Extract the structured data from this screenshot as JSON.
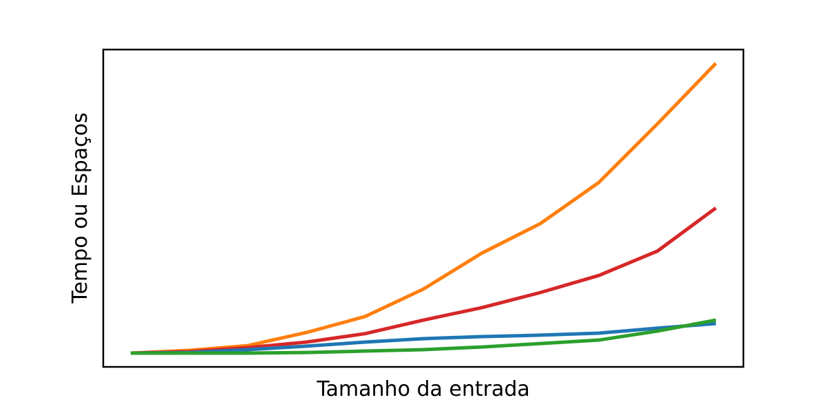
{
  "chart_data": {
    "type": "line",
    "x_label": "Tamanho da entrada",
    "y_label": "Tempo ou Espaços",
    "x": [
      0,
      10,
      20,
      30,
      40,
      50,
      60,
      70,
      80,
      90,
      100
    ],
    "series": [
      {
        "color": "#ff7f0e",
        "values": [
          0,
          0.0095,
          0.026,
          0.071,
          0.126,
          0.221,
          0.345,
          0.447,
          0.589,
          0.791,
          1.0
        ]
      },
      {
        "color": "#d62728",
        "values": [
          0,
          0.005,
          0.019,
          0.038,
          0.067,
          0.114,
          0.157,
          0.209,
          0.268,
          0.352,
          0.501
        ]
      },
      {
        "color": "#1f77b4",
        "values": [
          0,
          0.002,
          0.012,
          0.024,
          0.038,
          0.05,
          0.057,
          0.062,
          0.069,
          0.086,
          0.102
        ]
      },
      {
        "color": "#2ca02c",
        "values": [
          0,
          0,
          0,
          0.002,
          0.007,
          0.012,
          0.021,
          0.033,
          0.045,
          0.076,
          0.114
        ]
      }
    ],
    "xlim": [
      -4.7,
      104.7
    ],
    "ylim": [
      -0.0475,
      1.0475
    ]
  }
}
